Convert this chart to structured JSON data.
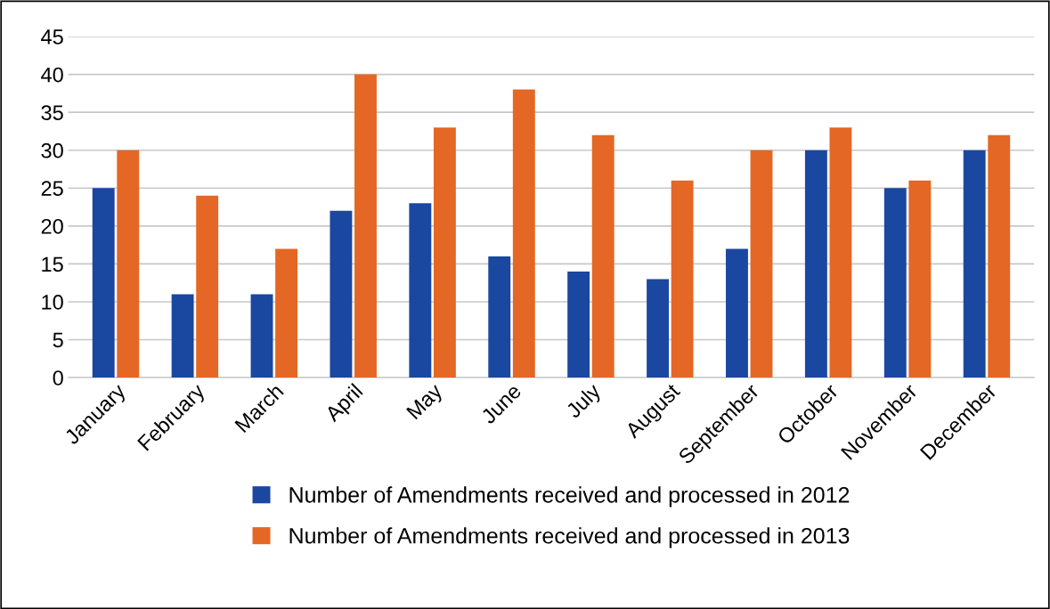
{
  "chart_data": {
    "type": "bar",
    "categories": [
      "January",
      "February",
      "March",
      "April",
      "May",
      "June",
      "July",
      "August",
      "September",
      "October",
      "November",
      "December"
    ],
    "series": [
      {
        "name": "Number of Amendments received and processed in 2012",
        "color": "#1a47a0",
        "values": [
          25,
          11,
          11,
          22,
          23,
          16,
          14,
          13,
          17,
          30,
          25,
          30
        ]
      },
      {
        "name": "Number of Amendments received and processed in 2013",
        "color": "#e46725",
        "values": [
          30,
          24,
          17,
          40,
          33,
          38,
          32,
          26,
          30,
          33,
          26,
          32
        ]
      }
    ],
    "ylim": [
      0,
      45
    ],
    "yticks": [
      0,
      5,
      10,
      15,
      20,
      25,
      30,
      35,
      40,
      45
    ],
    "grid": "y",
    "legend": "bottom"
  }
}
